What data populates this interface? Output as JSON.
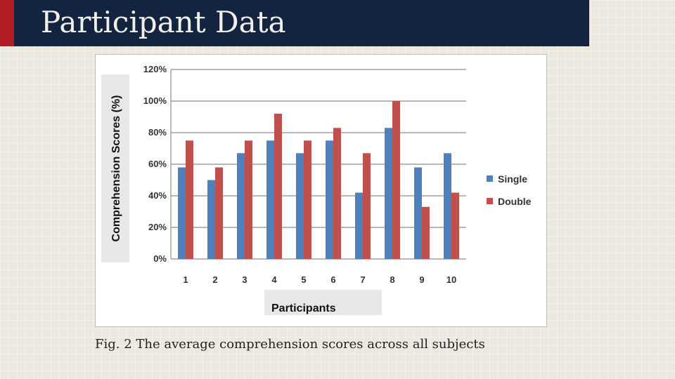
{
  "slide": {
    "title": "Participant Data",
    "caption": "Fig. 2 The average comprehension scores across all subjects"
  },
  "colors": {
    "title_bar": "#12243f",
    "accent": "#b21e24",
    "single": "#4f81bd",
    "double": "#c0504d"
  },
  "chart_data": {
    "type": "bar",
    "xlabel": "Participants",
    "ylabel": "Comprehension Scores (%)",
    "categories": [
      "1",
      "2",
      "3",
      "4",
      "5",
      "6",
      "7",
      "8",
      "9",
      "10"
    ],
    "ylim": [
      0,
      120
    ],
    "yticks": [
      "0%",
      "20%",
      "40%",
      "60%",
      "80%",
      "100%",
      "120%"
    ],
    "grid": true,
    "legend_position": "right",
    "series": [
      {
        "name": "Single",
        "values": [
          58,
          50,
          67,
          75,
          67,
          75,
          42,
          83,
          58,
          67
        ]
      },
      {
        "name": "Double",
        "values": [
          75,
          58,
          75,
          92,
          75,
          83,
          67,
          100,
          33,
          42
        ]
      }
    ]
  }
}
